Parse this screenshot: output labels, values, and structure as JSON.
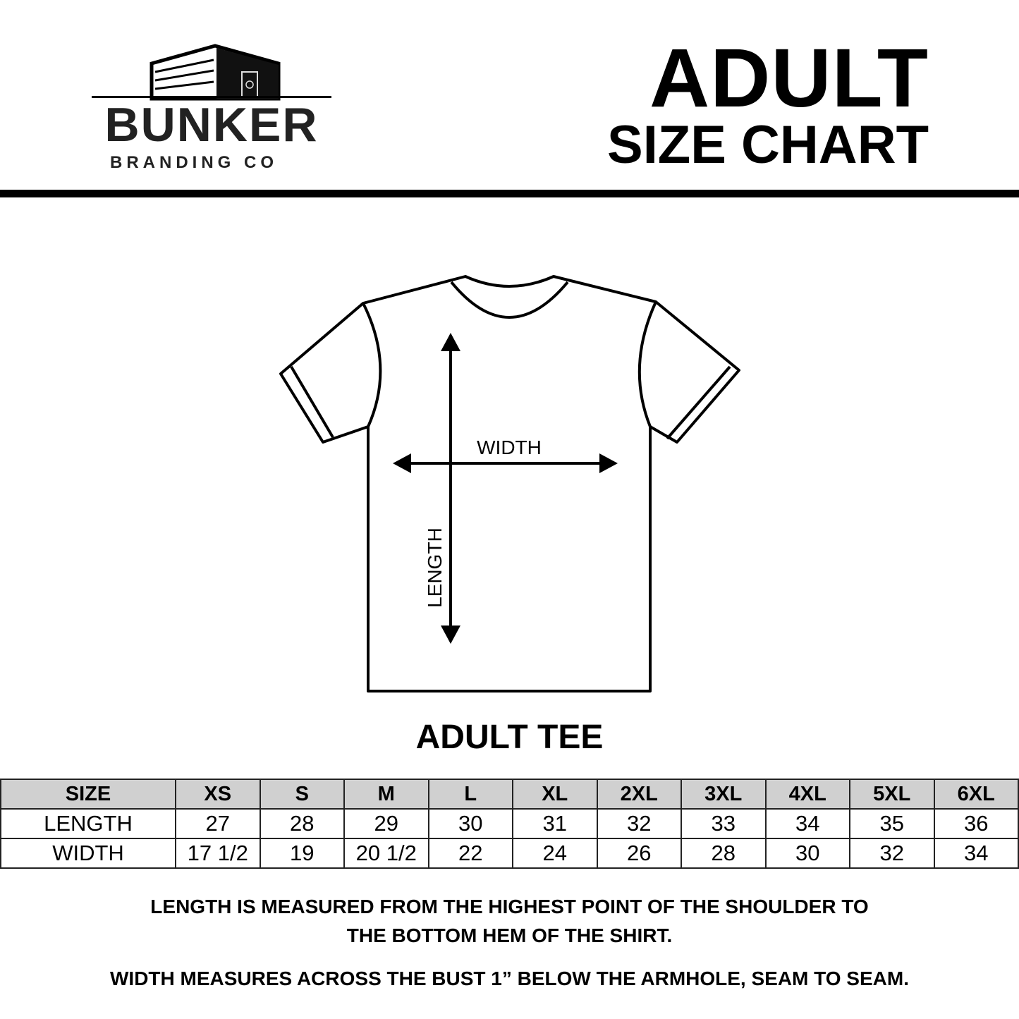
{
  "brand": {
    "name": "BUNKER",
    "sub": "BRANDING CO"
  },
  "header": {
    "title": "ADULT",
    "subtitle": "SIZE CHART"
  },
  "diagram": {
    "width_label": "WIDTH",
    "length_label": "LENGTH"
  },
  "garment_title": "ADULT TEE",
  "table": {
    "header": [
      "SIZE",
      "XS",
      "S",
      "M",
      "L",
      "XL",
      "2XL",
      "3XL",
      "4XL",
      "5XL",
      "6XL"
    ],
    "rows": [
      [
        "LENGTH",
        "27",
        "28",
        "29",
        "30",
        "31",
        "32",
        "33",
        "34",
        "35",
        "36"
      ],
      [
        "WIDTH",
        "17 1/2",
        "19",
        "20 1/2",
        "22",
        "24",
        "26",
        "28",
        "30",
        "32",
        "34"
      ]
    ]
  },
  "notes": [
    "LENGTH IS MEASURED FROM THE HIGHEST POINT OF THE SHOULDER TO",
    "THE BOTTOM HEM OF THE SHIRT.",
    "WIDTH MEASURES ACROSS THE BUST 1” BELOW THE ARMHOLE, SEAM TO SEAM."
  ],
  "colors": {
    "header_bg": "#d0d0d0",
    "ink": "#000000"
  }
}
